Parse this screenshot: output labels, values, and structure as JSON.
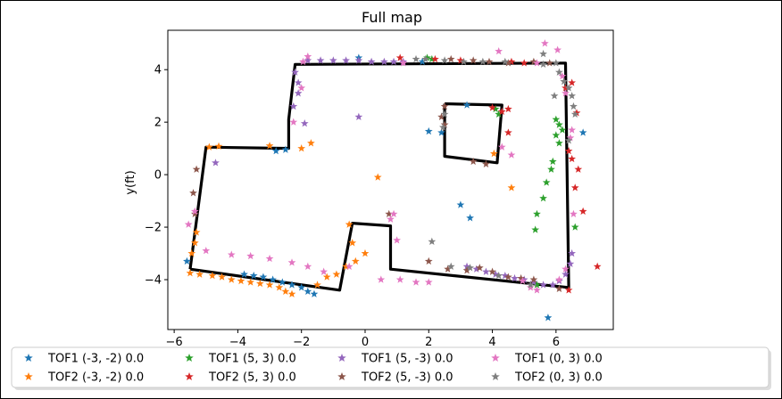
{
  "chart_data": {
    "type": "scatter",
    "title": "Full map",
    "xlabel": "",
    "ylabel": "y(ft)",
    "xlim": [
      -6.2,
      7.8
    ],
    "ylim": [
      -5.9,
      5.5
    ],
    "xticks": [
      -6,
      -4,
      -2,
      0,
      2,
      4,
      6
    ],
    "yticks": [
      -4,
      -2,
      0,
      2,
      4
    ],
    "grid": false,
    "legend_position": "bottom",
    "map_outline": [
      [
        [
          -5.5,
          -3.6
        ],
        [
          -5.0,
          1.05
        ],
        [
          -2.4,
          1.0
        ],
        [
          -2.4,
          2.1
        ],
        [
          -2.2,
          4.2
        ],
        [
          6.3,
          4.25
        ],
        [
          6.4,
          -4.3
        ],
        [
          0.8,
          -3.6
        ],
        [
          0.8,
          -1.95
        ],
        [
          -0.4,
          -1.85
        ],
        [
          -0.8,
          -4.4
        ],
        [
          -5.5,
          -3.6
        ]
      ],
      [
        [
          2.5,
          2.7
        ],
        [
          4.3,
          2.65
        ],
        [
          4.15,
          0.45
        ],
        [
          2.5,
          0.7
        ],
        [
          2.5,
          2.7
        ]
      ]
    ],
    "series": [
      {
        "name": "TOF1 (-3, -2) 0.0",
        "color": "#1f77b4",
        "points": [
          [
            -5.6,
            -3.3
          ],
          [
            -3.8,
            -3.8
          ],
          [
            -3.5,
            -3.85
          ],
          [
            -3.2,
            -3.9
          ],
          [
            -2.9,
            -4.0
          ],
          [
            -2.6,
            -4.1
          ],
          [
            -2.3,
            -4.2
          ],
          [
            -2.0,
            -4.3
          ],
          [
            -1.8,
            -4.45
          ],
          [
            -1.6,
            -4.55
          ],
          [
            -2.8,
            0.9
          ],
          [
            -2.5,
            0.95
          ],
          [
            -0.2,
            4.45
          ],
          [
            1.8,
            4.3
          ],
          [
            2.4,
            1.6
          ],
          [
            2.0,
            1.65
          ],
          [
            3.0,
            -1.15
          ],
          [
            3.3,
            -1.65
          ],
          [
            5.75,
            -5.45
          ],
          [
            3.2,
            2.65
          ],
          [
            6.85,
            1.6
          ]
        ]
      },
      {
        "name": "TOF2 (-3, -2) 0.0",
        "color": "#ff7f0e",
        "points": [
          [
            -5.45,
            -3.0
          ],
          [
            -5.35,
            -2.6
          ],
          [
            -5.3,
            -2.2
          ],
          [
            -5.5,
            -3.75
          ],
          [
            -5.2,
            -3.8
          ],
          [
            -4.8,
            -3.85
          ],
          [
            -4.5,
            -3.9
          ],
          [
            -4.2,
            -4.0
          ],
          [
            -3.9,
            -4.05
          ],
          [
            -3.6,
            -4.1
          ],
          [
            -3.3,
            -4.15
          ],
          [
            -3.0,
            -4.2
          ],
          [
            -2.7,
            -4.3
          ],
          [
            -2.5,
            -4.45
          ],
          [
            -2.3,
            -4.55
          ],
          [
            -1.5,
            -4.2
          ],
          [
            -1.2,
            -3.9
          ],
          [
            -0.9,
            -3.8
          ],
          [
            -0.6,
            -3.5
          ],
          [
            -0.3,
            -3.3
          ],
          [
            0.0,
            -3.0
          ],
          [
            -0.5,
            -1.9
          ],
          [
            -0.4,
            -2.6
          ],
          [
            -4.9,
            1.05
          ],
          [
            -4.6,
            1.08
          ],
          [
            -3.0,
            1.1
          ],
          [
            -2.0,
            1.0
          ],
          [
            -1.7,
            1.2
          ],
          [
            4.05,
            0.8
          ],
          [
            4.6,
            -0.5
          ],
          [
            0.4,
            -0.1
          ]
        ]
      },
      {
        "name": "TOF1 (5, 3) 0.0",
        "color": "#2ca02c",
        "points": [
          [
            1.95,
            4.45
          ],
          [
            2.1,
            4.4
          ],
          [
            4.1,
            2.5
          ],
          [
            4.2,
            2.3
          ],
          [
            6.0,
            2.1
          ],
          [
            6.1,
            1.9
          ],
          [
            6.2,
            1.7
          ],
          [
            6.0,
            1.5
          ],
          [
            6.1,
            1.2
          ],
          [
            5.9,
            0.5
          ],
          [
            5.85,
            0.2
          ],
          [
            5.7,
            -0.3
          ],
          [
            5.6,
            -0.9
          ],
          [
            5.4,
            -1.5
          ],
          [
            5.35,
            -2.1
          ],
          [
            6.6,
            -2.0
          ],
          [
            5.4,
            -4.2
          ]
        ]
      },
      {
        "name": "TOF2 (5, 3) 0.0",
        "color": "#d62728",
        "points": [
          [
            1.1,
            4.45
          ],
          [
            2.2,
            4.4
          ],
          [
            4.0,
            2.55
          ],
          [
            4.3,
            2.4
          ],
          [
            4.5,
            2.5
          ],
          [
            4.5,
            1.6
          ],
          [
            6.5,
            3.5
          ],
          [
            6.3,
            3.3
          ],
          [
            6.65,
            2.35
          ],
          [
            6.4,
            0.9
          ],
          [
            6.5,
            0.6
          ],
          [
            6.7,
            0.2
          ],
          [
            6.6,
            -0.5
          ],
          [
            6.85,
            -1.4
          ],
          [
            7.3,
            -3.5
          ],
          [
            6.4,
            -4.4
          ],
          [
            3.0,
            4.35
          ],
          [
            4.6,
            4.3
          ],
          [
            5.0,
            4.25
          ]
        ]
      },
      {
        "name": "TOF1 (5, -3) 0.0",
        "color": "#9467bd",
        "points": [
          [
            -2.2,
            3.9
          ],
          [
            -2.1,
            3.5
          ],
          [
            -2.1,
            3.1
          ],
          [
            -2.25,
            2.6
          ],
          [
            -1.9,
            1.95
          ],
          [
            -4.7,
            0.45
          ],
          [
            -0.2,
            2.2
          ],
          [
            -1.8,
            4.35
          ],
          [
            -1.4,
            4.35
          ],
          [
            -1.0,
            4.35
          ],
          [
            -0.6,
            4.35
          ],
          [
            -0.2,
            4.35
          ],
          [
            0.2,
            4.3
          ],
          [
            0.6,
            4.3
          ],
          [
            0.9,
            4.3
          ],
          [
            1.2,
            4.3
          ],
          [
            3.2,
            -3.5
          ],
          [
            3.5,
            -3.6
          ],
          [
            3.8,
            -3.7
          ],
          [
            4.1,
            -3.8
          ],
          [
            4.4,
            -3.85
          ],
          [
            4.7,
            -3.95
          ],
          [
            5.0,
            -4.0
          ],
          [
            5.3,
            -4.1
          ],
          [
            5.6,
            -4.2
          ],
          [
            5.9,
            -4.2
          ],
          [
            6.1,
            -4.05
          ],
          [
            6.3,
            -3.8
          ],
          [
            6.45,
            -3.4
          ],
          [
            6.5,
            -3.0
          ]
        ]
      },
      {
        "name": "TOF2 (5, -3) 0.0",
        "color": "#8c564b",
        "points": [
          [
            -5.35,
            -1.5
          ],
          [
            -5.4,
            -0.7
          ],
          [
            -5.3,
            0.2
          ],
          [
            0.75,
            -1.5
          ],
          [
            2.0,
            -3.3
          ],
          [
            2.6,
            -3.6
          ],
          [
            3.2,
            -3.65
          ],
          [
            3.6,
            -3.55
          ],
          [
            4.0,
            -3.7
          ],
          [
            4.5,
            -3.9
          ],
          [
            4.9,
            -3.95
          ],
          [
            5.3,
            -4.0
          ],
          [
            6.1,
            -4.35
          ],
          [
            2.5,
            2.6
          ],
          [
            2.4,
            2.2
          ],
          [
            2.5,
            1.9
          ],
          [
            3.4,
            0.5
          ],
          [
            3.8,
            0.4
          ],
          [
            2.7,
            4.4
          ],
          [
            3.4,
            4.35
          ],
          [
            3.9,
            4.3
          ],
          [
            4.5,
            4.25
          ],
          [
            5.3,
            4.3
          ],
          [
            5.8,
            4.25
          ]
        ]
      },
      {
        "name": "TOF1 (0, 3) 0.0",
        "color": "#e377c2",
        "points": [
          [
            -5.55,
            -1.9
          ],
          [
            -5.35,
            -1.4
          ],
          [
            -5.0,
            -2.9
          ],
          [
            -4.2,
            -3.05
          ],
          [
            -3.6,
            -3.1
          ],
          [
            -3.0,
            -3.2
          ],
          [
            -2.3,
            -3.35
          ],
          [
            -1.8,
            -3.5
          ],
          [
            -1.3,
            -3.7
          ],
          [
            -0.5,
            -3.5
          ],
          [
            0.5,
            -4.0
          ],
          [
            1.1,
            -4.0
          ],
          [
            1.6,
            -4.1
          ],
          [
            2.0,
            -4.1
          ],
          [
            0.9,
            -1.5
          ],
          [
            0.8,
            -1.7
          ],
          [
            1.0,
            -2.5
          ],
          [
            -2.25,
            2.0
          ],
          [
            -2.0,
            3.3
          ],
          [
            -1.95,
            4.3
          ],
          [
            -1.8,
            4.5
          ],
          [
            1.2,
            4.25
          ],
          [
            4.2,
            4.7
          ],
          [
            4.3,
            1.05
          ],
          [
            4.6,
            0.75
          ],
          [
            5.4,
            4.25
          ],
          [
            5.65,
            5.0
          ],
          [
            6.05,
            4.75
          ],
          [
            6.2,
            3.75
          ],
          [
            6.3,
            3.1
          ],
          [
            6.5,
            1.7
          ],
          [
            6.45,
            1.4
          ],
          [
            6.55,
            -1.5
          ],
          [
            6.3,
            -3.6
          ],
          [
            6.1,
            -4.0
          ],
          [
            4.95,
            -4.05
          ],
          [
            5.2,
            -4.3
          ],
          [
            5.4,
            -4.4
          ]
        ]
      },
      {
        "name": "TOF2 (0, 3) 0.0",
        "color": "#7f7f7f",
        "points": [
          [
            2.5,
            2.3
          ],
          [
            2.45,
            1.8
          ],
          [
            2.1,
            -2.55
          ],
          [
            2.7,
            -3.5
          ],
          [
            3.3,
            -3.55
          ],
          [
            4.2,
            -3.85
          ],
          [
            5.2,
            -4.2
          ],
          [
            5.95,
            3.0
          ],
          [
            5.6,
            4.6
          ],
          [
            6.1,
            3.9
          ],
          [
            6.25,
            3.55
          ],
          [
            6.4,
            3.3
          ],
          [
            6.5,
            3.0
          ],
          [
            6.55,
            2.6
          ],
          [
            6.6,
            2.3
          ],
          [
            6.4,
            1.3
          ],
          [
            1.6,
            4.4
          ],
          [
            1.9,
            4.4
          ],
          [
            2.5,
            4.35
          ],
          [
            3.1,
            4.3
          ],
          [
            3.7,
            4.3
          ],
          [
            4.4,
            4.3
          ],
          [
            5.6,
            4.2
          ],
          [
            6.0,
            4.25
          ]
        ]
      }
    ]
  }
}
